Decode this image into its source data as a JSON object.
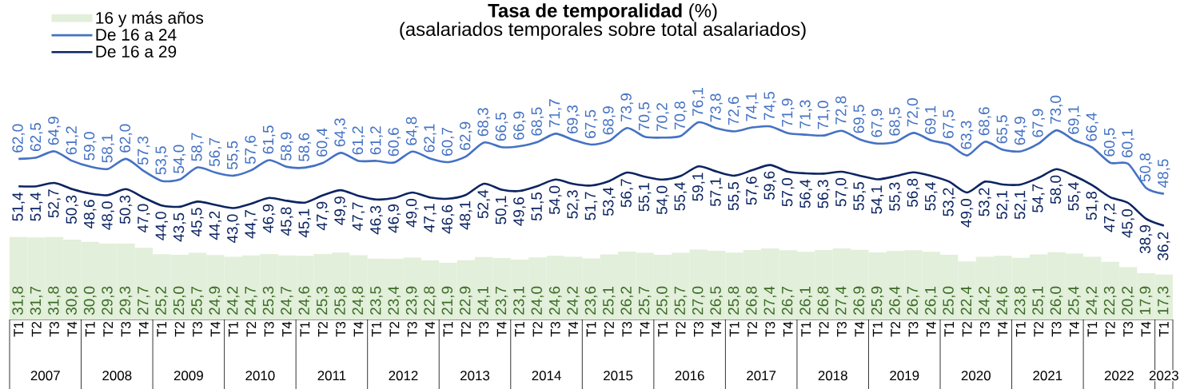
{
  "chart_data": {
    "type": "line",
    "title": "**Tasa de temporalidad** (%)",
    "subtitle": "(asalariados temporales sobre total asalariados)",
    "categories": [
      "T1",
      "T2",
      "T3",
      "T4",
      "T1",
      "T2",
      "T3",
      "T4",
      "T1",
      "T2",
      "T3",
      "T4",
      "T1",
      "T2",
      "T3",
      "T4",
      "T1",
      "T2",
      "T3",
      "T4",
      "T1",
      "T2",
      "T3",
      "T4",
      "T1",
      "T2",
      "T3",
      "T4",
      "T1",
      "T2",
      "T3",
      "T4",
      "T1",
      "T2",
      "T3",
      "T4",
      "T1",
      "T2",
      "T3",
      "T4",
      "T1",
      "T2",
      "T3",
      "T4",
      "T1",
      "T2",
      "T3",
      "T4",
      "T1",
      "T2",
      "T3",
      "T4",
      "T1",
      "T2",
      "T3",
      "T4",
      "T1",
      "T2",
      "T3",
      "T4",
      "T1",
      "T2",
      "T3",
      "T4",
      "T1"
    ],
    "series": [
      {
        "name": "16 y más años",
        "type": "bar",
        "color": "#e2efda",
        "values": [
          31.8,
          31.7,
          31.8,
          30.8,
          30.0,
          29.3,
          29.3,
          27.7,
          25.2,
          25.0,
          25.7,
          24.9,
          24.2,
          24.7,
          25.3,
          24.7,
          24.6,
          25.3,
          25.8,
          24.8,
          23.5,
          23.4,
          23.9,
          22.8,
          21.9,
          22.9,
          24.1,
          23.7,
          23.1,
          24.0,
          24.6,
          24.2,
          23.6,
          25.1,
          26.2,
          25.7,
          25.0,
          25.7,
          27.0,
          26.5,
          25.8,
          26.8,
          27.4,
          26.7,
          26.1,
          26.8,
          27.4,
          26.9,
          25.9,
          26.4,
          26.7,
          26.1,
          25.0,
          22.4,
          24.2,
          24.6,
          23.8,
          25.1,
          26.0,
          25.4,
          24.2,
          22.3,
          20.2,
          17.9,
          17.3
        ],
        "value_labels": [
          "31,8",
          "31,7",
          "31,8",
          "30,8",
          "30,0",
          "29,3",
          "29,3",
          "27,7",
          "25,2",
          "25,0",
          "25,7",
          "24,9",
          "24,2",
          "24,7",
          "25,3",
          "24,7",
          "24,6",
          "25,3",
          "25,8",
          "24,8",
          "23,5",
          "23,4",
          "23,9",
          "22,8",
          "21,9",
          "22,9",
          "24,1",
          "23,7",
          "23,1",
          "24,0",
          "24,6",
          "24,2",
          "23,6",
          "25,1",
          "26,2",
          "25,7",
          "25,0",
          "25,7",
          "27,0",
          "26,5",
          "25,8",
          "26,8",
          "27,4",
          "26,7",
          "26,1",
          "26,8",
          "27,4",
          "26,9",
          "25,9",
          "26,4",
          "26,7",
          "26,1",
          "25,0",
          "22,4",
          "24,2",
          "24,6",
          "23,8",
          "25,1",
          "26,0",
          "25,4",
          "24,2",
          "22,3",
          "20,2",
          "17,9",
          "17,3"
        ]
      },
      {
        "name": "De 16 a 24",
        "color": "#4472c4",
        "values": [
          62.0,
          62.5,
          64.9,
          61.2,
          59.0,
          58.1,
          62.0,
          57.3,
          53.5,
          54.0,
          58.7,
          56.7,
          55.5,
          57.6,
          61.5,
          58.9,
          58.6,
          60.4,
          64.3,
          61.2,
          61.2,
          60.6,
          64.8,
          62.1,
          60.7,
          62.9,
          68.3,
          66.5,
          66.9,
          68.5,
          71.7,
          69.3,
          67.5,
          68.9,
          73.9,
          70.5,
          70.2,
          70.8,
          76.1,
          73.8,
          72.6,
          74.1,
          74.5,
          71.9,
          71.3,
          71.0,
          72.8,
          69.5,
          67.9,
          68.5,
          72.0,
          69.1,
          67.5,
          63.3,
          68.6,
          65.5,
          64.9,
          67.9,
          73.0,
          69.1,
          66.4,
          60.5,
          60.1,
          50.8,
          48.5
        ],
        "value_labels": [
          "62,0",
          "62,5",
          "64,9",
          "61,2",
          "59,0",
          "58,1",
          "62,0",
          "57,3",
          "53,5",
          "54,0",
          "58,7",
          "56,7",
          "55,5",
          "57,6",
          "61,5",
          "58,9",
          "58,6",
          "60,4",
          "64,3",
          "61,2",
          "61,2",
          "60,6",
          "64,8",
          "62,1",
          "60,7",
          "62,9",
          "68,3",
          "66,5",
          "66,9",
          "68,5",
          "71,7",
          "69,3",
          "67,5",
          "68,9",
          "73,9",
          "70,5",
          "70,2",
          "70,8",
          "76,1",
          "73,8",
          "72,6",
          "74,1",
          "74,5",
          "71,9",
          "71,3",
          "71,0",
          "72,8",
          "69,5",
          "67,9",
          "68,5",
          "72,0",
          "69,1",
          "67,5",
          "63,3",
          "68,6",
          "65,5",
          "64,9",
          "67,9",
          "73,0",
          "69,1",
          "66,4",
          "60,5",
          "60,1",
          "50,8",
          "48,5"
        ]
      },
      {
        "name": "De 16 a 29",
        "color": "#0c2461",
        "values": [
          51.4,
          51.4,
          52.7,
          50.3,
          48.6,
          48.0,
          50.3,
          47.0,
          44.0,
          43.5,
          45.5,
          44.2,
          43.0,
          44.7,
          46.9,
          45.8,
          45.1,
          47.9,
          49.9,
          47.7,
          46.3,
          46.9,
          49.0,
          47.1,
          46.6,
          48.1,
          52.4,
          50.1,
          49.6,
          51.5,
          54.0,
          52.3,
          51.7,
          53.4,
          56.7,
          55.1,
          54.0,
          55.4,
          59.1,
          57.1,
          55.5,
          57.6,
          59.6,
          57.0,
          56.4,
          56.3,
          57.0,
          55.5,
          54.1,
          55.3,
          56.8,
          55.4,
          53.2,
          49.0,
          53.2,
          52.1,
          52.1,
          54.7,
          58.0,
          55.4,
          51.8,
          47.2,
          45.0,
          38.9,
          36.2
        ],
        "value_labels": [
          "51,4",
          "51,4",
          "52,7",
          "50,3",
          "48,6",
          "48,0",
          "50,3",
          "47,0",
          "44,0",
          "43,5",
          "45,5",
          "44,2",
          "43,0",
          "44,7",
          "46,9",
          "45,8",
          "45,1",
          "47,9",
          "49,9",
          "47,7",
          "46,3",
          "46,9",
          "49,0",
          "47,1",
          "46,6",
          "48,1",
          "52,4",
          "50,1",
          "49,6",
          "51,5",
          "54,0",
          "52,3",
          "51,7",
          "53,4",
          "56,7",
          "55,1",
          "54,0",
          "55,4",
          "59,1",
          "57,1",
          "55,5",
          "57,6",
          "59,6",
          "57,0",
          "56,4",
          "56,3",
          "57,0",
          "55,5",
          "54,1",
          "55,3",
          "56,8",
          "55,4",
          "53,2",
          "49,0",
          "53,2",
          "52,1",
          "52,1",
          "54,7",
          "58,0",
          "55,4",
          "51,8",
          "47,2",
          "45,0",
          "38,9",
          "36,2"
        ]
      }
    ],
    "annotations": [
      "2007",
      "2008",
      "2009",
      "2010",
      "2011",
      "2012",
      "2013",
      "2014",
      "2015",
      "2016",
      "2017",
      "2018",
      "2019",
      "2020",
      "2021",
      "2022",
      "2023"
    ],
    "legend": "top left"
  }
}
